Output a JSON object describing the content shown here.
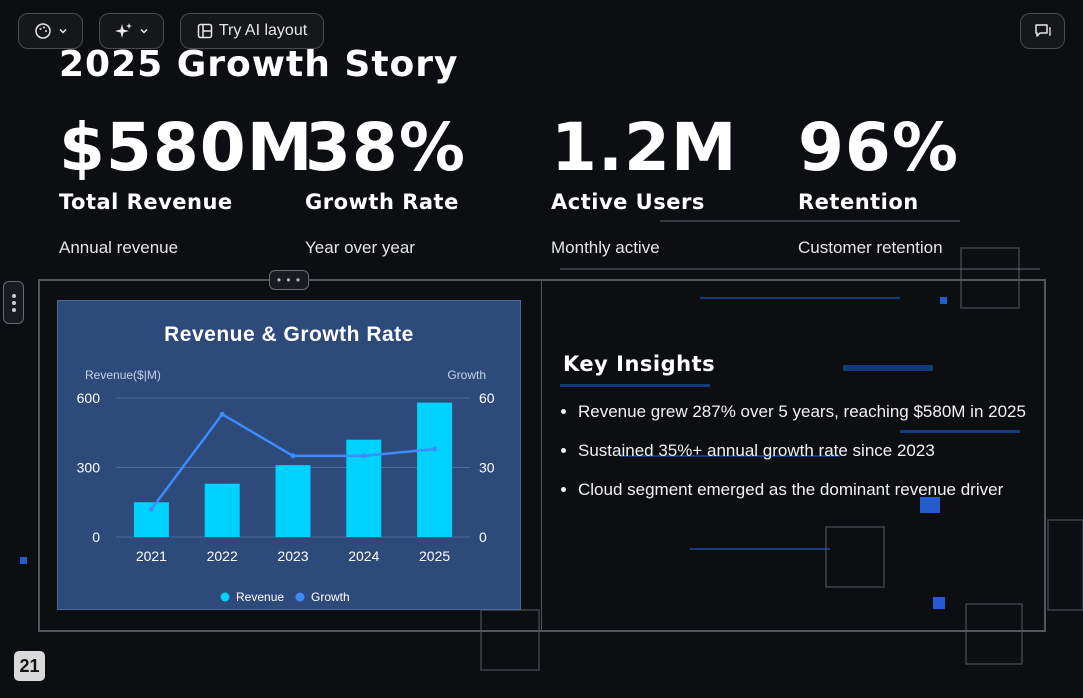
{
  "toolbar": {
    "theme_icon": "palette-icon",
    "magic_icon": "sparkle-icon",
    "ai_layout_label": "Try AI layout",
    "ai_layout_icon": "layout-icon",
    "comment_icon": "comment-icon"
  },
  "slide": {
    "title": "2025 Growth Story",
    "page_number": "21",
    "stats": [
      {
        "value": "$580M",
        "label": "Total Revenue",
        "sub": "Annual revenue"
      },
      {
        "value": "38%",
        "label": "Growth Rate",
        "sub": "Year over year"
      },
      {
        "value": "1.2M",
        "label": "Active Users",
        "sub": "Monthly active"
      },
      {
        "value": "96%",
        "label": "Retention",
        "sub": "Customer retention"
      }
    ],
    "insights": {
      "title": "Key Insights",
      "items": [
        "Revenue grew 287% over 5 years, reaching $580M in 2025",
        "Sustained 35%+ annual growth rate since 2023",
        "Cloud segment emerged as the dominant revenue driver"
      ]
    }
  },
  "chart_data": {
    "type": "bar",
    "title": "Revenue & Growth Rate",
    "categories": [
      "2021",
      "2022",
      "2023",
      "2024",
      "2025"
    ],
    "ylabel": "Revenue($|M)",
    "y2label": "Growth",
    "ylim": [
      0,
      600
    ],
    "y2lim": [
      0,
      60
    ],
    "yticks": [
      "0",
      "300",
      "600"
    ],
    "y2ticks": [
      "0",
      "30",
      "60"
    ],
    "legend_position": "bottom",
    "series": [
      {
        "name": "Revenue",
        "type": "bar",
        "axis": "left",
        "values": [
          150,
          230,
          310,
          420,
          580
        ],
        "color": "#00d2ff"
      },
      {
        "name": "Growth",
        "type": "line",
        "axis": "right",
        "values": [
          12,
          53,
          35,
          35,
          38
        ],
        "color": "#3d8bff"
      }
    ]
  },
  "colors": {
    "background": "#0d0e12",
    "chart_panel": "#2d4a7b",
    "revenue_bar": "#00d2ff",
    "growth_line": "#3d8bff"
  }
}
